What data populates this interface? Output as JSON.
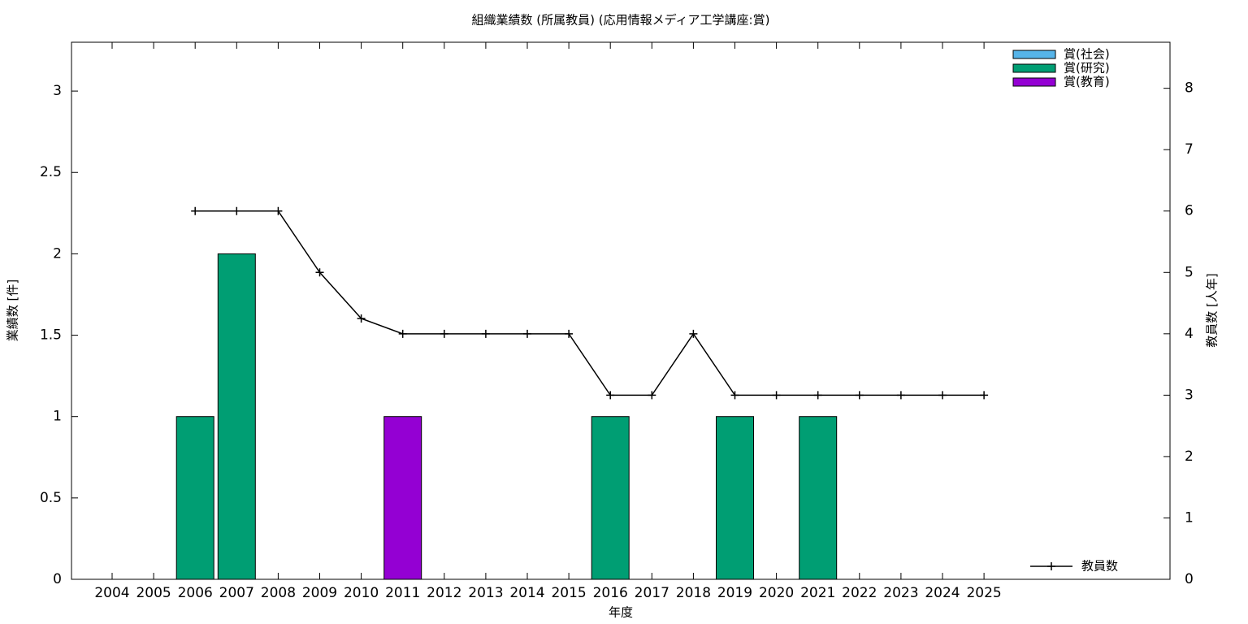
{
  "chart_data": {
    "type": "bar",
    "stacked": true,
    "title": "組織業績数 (所属教員) (応用情報メディア工学講座:賞)",
    "xlabel": "年度",
    "ylabel": "業績数 [件]",
    "y2label": "教員数 [人年]",
    "categories": [
      "2004",
      "2005",
      "2006",
      "2007",
      "2008",
      "2009",
      "2010",
      "2011",
      "2012",
      "2013",
      "2014",
      "2015",
      "2016",
      "2017",
      "2018",
      "2019",
      "2020",
      "2021",
      "2022",
      "2023",
      "2024",
      "2025"
    ],
    "series": [
      {
        "name": "賞(社会)",
        "color": "#56b4e9",
        "values": [
          0,
          0,
          0,
          0,
          0,
          0,
          0,
          0,
          0,
          0,
          0,
          0,
          0,
          0,
          0,
          0,
          0,
          0,
          0,
          0,
          0,
          0
        ]
      },
      {
        "name": "賞(研究)",
        "color": "#009e73",
        "values": [
          0,
          0,
          1,
          2,
          0,
          0,
          0,
          0,
          0,
          0,
          0,
          0,
          1,
          0,
          0,
          1,
          0,
          1,
          0,
          0,
          0,
          0
        ]
      },
      {
        "name": "賞(教育)",
        "color": "#9400d3",
        "values": [
          0,
          0,
          0,
          0,
          0,
          0,
          0,
          1,
          0,
          0,
          0,
          0,
          0,
          0,
          0,
          0,
          0,
          0,
          0,
          0,
          0,
          0
        ]
      },
      {
        "name": "教員数",
        "type": "line",
        "axis": "y2",
        "color": "#000000",
        "values": [
          null,
          null,
          6,
          6,
          6,
          5,
          4.25,
          4,
          4,
          4,
          4,
          4,
          3,
          3,
          4,
          3,
          3,
          3,
          3,
          3,
          3,
          3
        ]
      }
    ],
    "ylim": [
      0,
      3.3
    ],
    "yticks": [
      0,
      0.5,
      1,
      1.5,
      2,
      2.5,
      3
    ],
    "y2lim": [
      0,
      8.75
    ],
    "y2ticks": [
      0,
      1,
      2,
      3,
      4,
      5,
      6,
      7,
      8
    ]
  }
}
